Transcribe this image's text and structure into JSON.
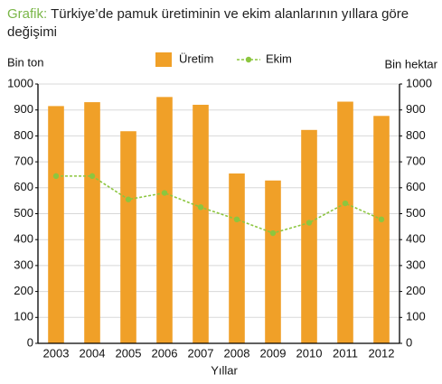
{
  "chart_data": {
    "type": "bar",
    "title_label": "Grafik:",
    "title": "Türkiye’de pamuk üretiminin ve ekim alanlarının yıllara göre değişimi",
    "y_label": "Bin ton",
    "y2_label": "Bin hektar",
    "x_label": "Yıllar",
    "categories": [
      "2003",
      "2004",
      "2005",
      "2006",
      "2007",
      "2008",
      "2009",
      "2010",
      "2011",
      "2012"
    ],
    "series": [
      {
        "name": "Üretim",
        "type": "bar",
        "color": "#f0a028",
        "values": [
          915,
          930,
          818,
          950,
          920,
          655,
          628,
          823,
          932,
          877
        ]
      },
      {
        "name": "Ekim",
        "type": "line",
        "axis": "y2",
        "color": "#8cc63f",
        "values": [
          645,
          645,
          555,
          580,
          525,
          478,
          425,
          465,
          540,
          478
        ]
      }
    ],
    "ylim": [
      0,
      1000
    ],
    "yticks": [
      0,
      100,
      200,
      300,
      400,
      500,
      600,
      700,
      800,
      900,
      1000
    ],
    "y2lim": [
      0,
      1000
    ],
    "y2ticks": [
      0,
      100,
      200,
      300,
      400,
      500,
      600,
      700,
      800,
      900,
      1000
    ],
    "grid": true,
    "legend": "top"
  }
}
